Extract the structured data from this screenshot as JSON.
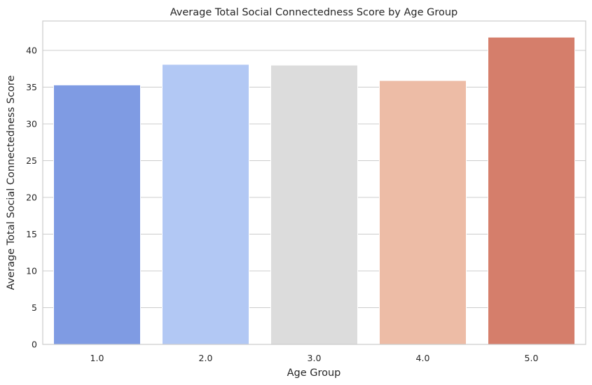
{
  "chart_data": {
    "type": "bar",
    "title": "Average Total Social Connectedness Score by Age Group",
    "xlabel": "Age Group",
    "ylabel": "Average Total Social Connectedness Score",
    "categories": [
      "1.0",
      "2.0",
      "3.0",
      "4.0",
      "5.0"
    ],
    "values": [
      35.3,
      38.1,
      38.0,
      35.9,
      41.8
    ],
    "colors": [
      "#7f9be3",
      "#b2c8f4",
      "#dcdcdc",
      "#edbca6",
      "#d57e6b"
    ],
    "ylim": [
      0,
      44
    ],
    "yticks": [
      0,
      5,
      10,
      15,
      20,
      25,
      30,
      35,
      40
    ],
    "grid": "horizontal",
    "legend": "none"
  }
}
